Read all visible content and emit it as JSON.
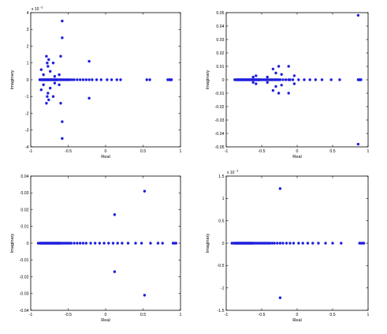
{
  "chart_data": [
    {
      "type": "scatter",
      "xlabel": "Real",
      "ylabel": "Imaginary",
      "xlim": [
        -1,
        1
      ],
      "ylim": [
        -4,
        4
      ],
      "xticks": [
        "-1",
        "-0.5",
        "0",
        "0.5",
        "1"
      ],
      "yticks": [
        "-4",
        "-3",
        "-2",
        "-1",
        "0",
        "1",
        "2",
        "3",
        "4"
      ],
      "ytick_values": [
        -4,
        -3,
        -2,
        -1,
        0,
        1,
        2,
        3,
        4
      ],
      "exponent_base": "x 10",
      "exponent_power": "-3",
      "points": [
        [
          -0.88,
          0
        ],
        [
          -0.87,
          0
        ],
        [
          -0.86,
          0
        ],
        [
          -0.85,
          0
        ],
        [
          -0.84,
          0
        ],
        [
          -0.83,
          0
        ],
        [
          -0.82,
          0
        ],
        [
          -0.81,
          0
        ],
        [
          -0.8,
          0
        ],
        [
          -0.79,
          0
        ],
        [
          -0.78,
          0
        ],
        [
          -0.77,
          0
        ],
        [
          -0.76,
          0
        ],
        [
          -0.75,
          0
        ],
        [
          -0.74,
          0
        ],
        [
          -0.73,
          0
        ],
        [
          -0.72,
          0
        ],
        [
          -0.71,
          0
        ],
        [
          -0.7,
          0
        ],
        [
          -0.69,
          0
        ],
        [
          -0.68,
          0
        ],
        [
          -0.67,
          0
        ],
        [
          -0.66,
          0
        ],
        [
          -0.65,
          0
        ],
        [
          -0.64,
          0
        ],
        [
          -0.62,
          0
        ],
        [
          -0.6,
          0
        ],
        [
          -0.58,
          0
        ],
        [
          -0.56,
          0
        ],
        [
          -0.54,
          0
        ],
        [
          -0.52,
          0
        ],
        [
          -0.5,
          0
        ],
        [
          -0.48,
          0
        ],
        [
          -0.45,
          0
        ],
        [
          -0.42,
          0
        ],
        [
          -0.38,
          0
        ],
        [
          -0.34,
          0
        ],
        [
          -0.3,
          0
        ],
        [
          -0.26,
          0
        ],
        [
          -0.22,
          0
        ],
        [
          -0.18,
          0
        ],
        [
          -0.12,
          0
        ],
        [
          -0.06,
          0
        ],
        [
          0.02,
          0
        ],
        [
          0.08,
          0
        ],
        [
          0.15,
          0
        ],
        [
          0.2,
          0
        ],
        [
          0.55,
          0
        ],
        [
          0.59,
          0
        ],
        [
          0.83,
          0
        ],
        [
          0.85,
          0
        ],
        [
          0.86,
          0
        ],
        [
          0.87,
          0
        ],
        [
          0.88,
          0
        ],
        [
          -0.83,
          0.3
        ],
        [
          -0.83,
          -0.3
        ],
        [
          -0.86,
          0.6
        ],
        [
          -0.86,
          -0.6
        ],
        [
          -0.79,
          1.4
        ],
        [
          -0.79,
          -1.4
        ],
        [
          -0.78,
          1.0
        ],
        [
          -0.78,
          -1.0
        ],
        [
          -0.77,
          0.8
        ],
        [
          -0.77,
          -0.8
        ],
        [
          -0.76,
          1.2
        ],
        [
          -0.76,
          -1.2
        ],
        [
          -0.74,
          0.5
        ],
        [
          -0.74,
          -0.5
        ],
        [
          -0.7,
          1.0
        ],
        [
          -0.7,
          -1.0
        ],
        [
          -0.68,
          0.2
        ],
        [
          -0.68,
          -0.2
        ],
        [
          -0.62,
          0.3
        ],
        [
          -0.62,
          -0.3
        ],
        [
          -0.6,
          1.4
        ],
        [
          -0.6,
          -1.4
        ],
        [
          -0.58,
          3.5
        ],
        [
          -0.58,
          -3.5
        ],
        [
          -0.58,
          2.5
        ],
        [
          -0.58,
          -2.5
        ],
        [
          -0.22,
          1.1
        ],
        [
          -0.22,
          -1.1
        ]
      ]
    },
    {
      "type": "scatter",
      "xlabel": "Real",
      "ylabel": "Imaginary",
      "xlim": [
        -1,
        1
      ],
      "ylim": [
        -0.05,
        0.05
      ],
      "xticks": [
        "-1",
        "-0.5",
        "0",
        "0.5",
        "1"
      ],
      "yticks": [
        "-0.05",
        "-0.04",
        "-0.03",
        "-0.02",
        "-0.01",
        "0",
        "0.01",
        "0.02",
        "0.03",
        "0.04",
        "0.05"
      ],
      "ytick_values": [
        -0.05,
        -0.04,
        -0.03,
        -0.02,
        -0.01,
        0,
        0.01,
        0.02,
        0.03,
        0.04,
        0.05
      ],
      "points": [
        [
          -0.88,
          0
        ],
        [
          -0.86,
          0
        ],
        [
          -0.85,
          0
        ],
        [
          -0.84,
          0
        ],
        [
          -0.83,
          0
        ],
        [
          -0.82,
          0
        ],
        [
          -0.81,
          0
        ],
        [
          -0.8,
          0
        ],
        [
          -0.79,
          0
        ],
        [
          -0.78,
          0
        ],
        [
          -0.77,
          0
        ],
        [
          -0.76,
          0
        ],
        [
          -0.75,
          0
        ],
        [
          -0.74,
          0
        ],
        [
          -0.73,
          0
        ],
        [
          -0.72,
          0
        ],
        [
          -0.71,
          0
        ],
        [
          -0.7,
          0
        ],
        [
          -0.69,
          0
        ],
        [
          -0.68,
          0
        ],
        [
          -0.67,
          0
        ],
        [
          -0.66,
          0
        ],
        [
          -0.65,
          0
        ],
        [
          -0.64,
          0
        ],
        [
          -0.63,
          0
        ],
        [
          -0.62,
          0
        ],
        [
          -0.61,
          0
        ],
        [
          -0.6,
          0
        ],
        [
          -0.59,
          0
        ],
        [
          -0.58,
          0
        ],
        [
          -0.57,
          0
        ],
        [
          -0.56,
          0
        ],
        [
          -0.55,
          0
        ],
        [
          -0.54,
          0
        ],
        [
          -0.53,
          0
        ],
        [
          -0.52,
          0
        ],
        [
          -0.5,
          0
        ],
        [
          -0.48,
          0
        ],
        [
          -0.46,
          0
        ],
        [
          -0.44,
          0
        ],
        [
          -0.42,
          0
        ],
        [
          -0.4,
          0
        ],
        [
          -0.38,
          0
        ],
        [
          -0.36,
          0
        ],
        [
          -0.34,
          0
        ],
        [
          -0.32,
          0
        ],
        [
          -0.3,
          0
        ],
        [
          -0.28,
          0
        ],
        [
          -0.26,
          0
        ],
        [
          -0.24,
          0
        ],
        [
          -0.2,
          0
        ],
        [
          -0.16,
          0
        ],
        [
          -0.12,
          0
        ],
        [
          -0.1,
          0
        ],
        [
          -0.06,
          0
        ],
        [
          0.02,
          0
        ],
        [
          0.1,
          0
        ],
        [
          0.18,
          0
        ],
        [
          0.26,
          0
        ],
        [
          0.35,
          0
        ],
        [
          0.48,
          0
        ],
        [
          0.6,
          0
        ],
        [
          0.86,
          0
        ],
        [
          0.87,
          0
        ],
        [
          0.88,
          0
        ],
        [
          0.89,
          0
        ],
        [
          0.9,
          0
        ],
        [
          -0.62,
          0.002
        ],
        [
          -0.62,
          -0.002
        ],
        [
          -0.58,
          0.003
        ],
        [
          -0.58,
          -0.003
        ],
        [
          -0.42,
          0.002
        ],
        [
          -0.42,
          -0.002
        ],
        [
          -0.34,
          0.008
        ],
        [
          -0.34,
          -0.008
        ],
        [
          -0.3,
          0.005
        ],
        [
          -0.3,
          -0.005
        ],
        [
          -0.26,
          0.01
        ],
        [
          -0.26,
          -0.01
        ],
        [
          -0.22,
          0.004
        ],
        [
          -0.22,
          -0.004
        ],
        [
          -0.12,
          0.01
        ],
        [
          -0.12,
          -0.01
        ],
        [
          -0.04,
          0.003
        ],
        [
          -0.04,
          -0.003
        ],
        [
          0.86,
          0.048
        ],
        [
          0.86,
          -0.048
        ]
      ]
    },
    {
      "type": "scatter",
      "xlabel": "Real",
      "ylabel": "Imaginary",
      "xlim": [
        -1,
        1
      ],
      "ylim": [
        -0.04,
        0.04
      ],
      "xticks": [
        "-1",
        "-0.5",
        "0",
        "0.5",
        "1"
      ],
      "yticks": [
        "-0.04",
        "-0.03",
        "-0.02",
        "-0.01",
        "0",
        "0.01",
        "0.02",
        "0.03",
        "0.04"
      ],
      "ytick_values": [
        -0.04,
        -0.03,
        -0.02,
        -0.01,
        0,
        0.01,
        0.02,
        0.03,
        0.04
      ],
      "points": [
        [
          -0.9,
          0
        ],
        [
          -0.88,
          0
        ],
        [
          -0.87,
          0
        ],
        [
          -0.86,
          0
        ],
        [
          -0.85,
          0
        ],
        [
          -0.84,
          0
        ],
        [
          -0.83,
          0
        ],
        [
          -0.82,
          0
        ],
        [
          -0.81,
          0
        ],
        [
          -0.8,
          0
        ],
        [
          -0.79,
          0
        ],
        [
          -0.78,
          0
        ],
        [
          -0.77,
          0
        ],
        [
          -0.76,
          0
        ],
        [
          -0.75,
          0
        ],
        [
          -0.74,
          0
        ],
        [
          -0.73,
          0
        ],
        [
          -0.72,
          0
        ],
        [
          -0.71,
          0
        ],
        [
          -0.7,
          0
        ],
        [
          -0.69,
          0
        ],
        [
          -0.68,
          0
        ],
        [
          -0.67,
          0
        ],
        [
          -0.66,
          0
        ],
        [
          -0.65,
          0
        ],
        [
          -0.64,
          0
        ],
        [
          -0.63,
          0
        ],
        [
          -0.62,
          0
        ],
        [
          -0.61,
          0
        ],
        [
          -0.6,
          0
        ],
        [
          -0.58,
          0
        ],
        [
          -0.56,
          0
        ],
        [
          -0.54,
          0
        ],
        [
          -0.52,
          0
        ],
        [
          -0.5,
          0
        ],
        [
          -0.48,
          0
        ],
        [
          -0.46,
          0
        ],
        [
          -0.42,
          0
        ],
        [
          -0.38,
          0
        ],
        [
          -0.34,
          0
        ],
        [
          -0.3,
          0
        ],
        [
          -0.26,
          0
        ],
        [
          -0.2,
          0
        ],
        [
          -0.14,
          0
        ],
        [
          -0.08,
          0
        ],
        [
          -0.02,
          0
        ],
        [
          0.04,
          0
        ],
        [
          0.1,
          0
        ],
        [
          0.16,
          0
        ],
        [
          0.22,
          0
        ],
        [
          0.3,
          0
        ],
        [
          0.4,
          0
        ],
        [
          0.48,
          0
        ],
        [
          0.6,
          0
        ],
        [
          0.7,
          0
        ],
        [
          0.76,
          0
        ],
        [
          0.9,
          0
        ],
        [
          0.92,
          0
        ],
        [
          0.94,
          0
        ],
        [
          0.12,
          0.017
        ],
        [
          0.12,
          -0.017
        ],
        [
          0.52,
          0.031
        ],
        [
          0.52,
          -0.031
        ]
      ]
    },
    {
      "type": "scatter",
      "xlabel": "Real",
      "ylabel": "Imaginary",
      "xlim": [
        -1,
        1
      ],
      "ylim": [
        -1.5,
        1.5
      ],
      "xticks": [
        "-1",
        "-0.5",
        "0",
        "0.5",
        "1"
      ],
      "yticks": [
        "-1.5",
        "-1",
        "-0.5",
        "0",
        "0.5",
        "1",
        "1.5"
      ],
      "ytick_values": [
        -1.5,
        -1,
        -0.5,
        0,
        0.5,
        1,
        1.5
      ],
      "exponent_base": "x 10",
      "exponent_power": "-3",
      "points": [
        [
          -0.92,
          0
        ],
        [
          -0.9,
          0
        ],
        [
          -0.88,
          0
        ],
        [
          -0.87,
          0
        ],
        [
          -0.86,
          0
        ],
        [
          -0.85,
          0
        ],
        [
          -0.84,
          0
        ],
        [
          -0.83,
          0
        ],
        [
          -0.82,
          0
        ],
        [
          -0.81,
          0
        ],
        [
          -0.8,
          0
        ],
        [
          -0.79,
          0
        ],
        [
          -0.78,
          0
        ],
        [
          -0.77,
          0
        ],
        [
          -0.76,
          0
        ],
        [
          -0.75,
          0
        ],
        [
          -0.74,
          0
        ],
        [
          -0.73,
          0
        ],
        [
          -0.72,
          0
        ],
        [
          -0.71,
          0
        ],
        [
          -0.7,
          0
        ],
        [
          -0.69,
          0
        ],
        [
          -0.68,
          0
        ],
        [
          -0.67,
          0
        ],
        [
          -0.66,
          0
        ],
        [
          -0.65,
          0
        ],
        [
          -0.64,
          0
        ],
        [
          -0.63,
          0
        ],
        [
          -0.62,
          0
        ],
        [
          -0.6,
          0
        ],
        [
          -0.58,
          0
        ],
        [
          -0.56,
          0
        ],
        [
          -0.54,
          0
        ],
        [
          -0.52,
          0
        ],
        [
          -0.5,
          0
        ],
        [
          -0.48,
          0
        ],
        [
          -0.46,
          0
        ],
        [
          -0.44,
          0
        ],
        [
          -0.42,
          0
        ],
        [
          -0.4,
          0
        ],
        [
          -0.38,
          0
        ],
        [
          -0.35,
          0
        ],
        [
          -0.32,
          0
        ],
        [
          -0.28,
          0
        ],
        [
          -0.24,
          0
        ],
        [
          -0.2,
          0
        ],
        [
          -0.15,
          0
        ],
        [
          -0.1,
          0
        ],
        [
          -0.05,
          0
        ],
        [
          0.02,
          0
        ],
        [
          0.08,
          0
        ],
        [
          0.15,
          0
        ],
        [
          0.22,
          0
        ],
        [
          0.3,
          0
        ],
        [
          0.4,
          0
        ],
        [
          0.5,
          0
        ],
        [
          0.62,
          0
        ],
        [
          0.88,
          0
        ],
        [
          0.9,
          0
        ],
        [
          0.92,
          0
        ],
        [
          0.94,
          0
        ],
        [
          -0.24,
          1.22
        ],
        [
          -0.24,
          -1.22
        ]
      ]
    }
  ],
  "colors": {
    "marker": "#1f1fdd",
    "axes": "#000000",
    "background": "#ffffff"
  }
}
